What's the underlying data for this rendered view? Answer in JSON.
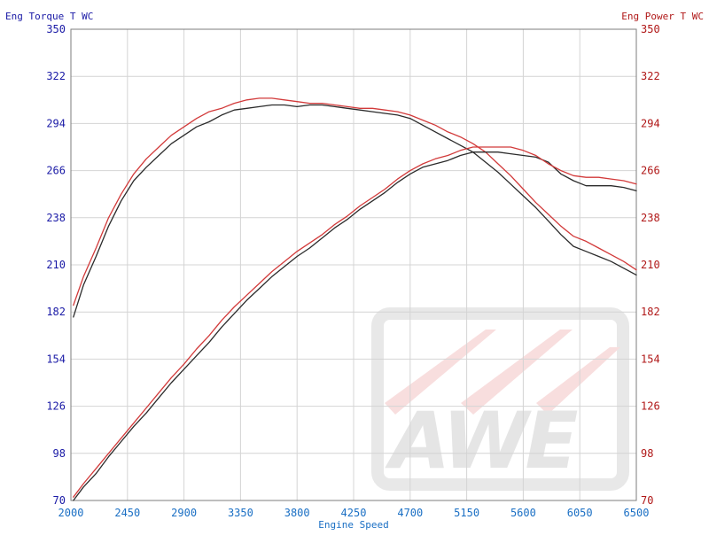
{
  "chart_data": {
    "type": "line",
    "xlabel": "Engine Speed",
    "ylabel_left": "Eng Torque T WC",
    "ylabel_right": "Eng Power T WC",
    "xlim": [
      2000,
      6500
    ],
    "ylim": [
      70,
      350
    ],
    "x_ticks": [
      "2000",
      "2450",
      "2900",
      "3350",
      "3800",
      "4250",
      "4700",
      "5150",
      "5600",
      "6050",
      "6500"
    ],
    "y_ticks": [
      "70",
      "98",
      "126",
      "154",
      "182",
      "210",
      "238",
      "266",
      "294",
      "322",
      "350"
    ],
    "grid": true,
    "watermark": "AWE",
    "colors": {
      "dark_curves": "#2b2b2b",
      "red_curves": "#d23a3a",
      "left_axis": "#1a1aa6",
      "right_axis": "#b01818",
      "x_axis": "#1a6fc4"
    },
    "series": [
      {
        "color": "#2b2b2b",
        "x": [
          2020,
          2100,
          2200,
          2300,
          2400,
          2500,
          2600,
          2700,
          2800,
          2900,
          3000,
          3100,
          3200,
          3300,
          3400,
          3500,
          3600,
          3700,
          3800,
          3900,
          4000,
          4100,
          4200,
          4300,
          4400,
          4500,
          4600,
          4700,
          4800,
          4900,
          5000,
          5100,
          5200,
          5300,
          5400,
          5500,
          5600,
          5700,
          5800,
          5900,
          6000,
          6100,
          6200,
          6300,
          6400,
          6500
        ],
        "y": [
          179,
          198,
          215,
          233,
          248,
          260,
          268,
          275,
          282,
          287,
          292,
          295,
          299,
          302,
          303,
          304,
          305,
          305,
          304,
          305,
          305,
          304,
          303,
          302,
          301,
          300,
          299,
          297,
          293,
          289,
          285,
          281,
          277,
          271,
          265,
          258,
          251,
          244,
          236,
          228,
          221,
          218,
          215,
          212,
          208,
          204
        ]
      },
      {
        "color": "#d23a3a",
        "x": [
          2020,
          2100,
          2200,
          2300,
          2400,
          2500,
          2600,
          2700,
          2800,
          2900,
          3000,
          3100,
          3200,
          3300,
          3400,
          3500,
          3600,
          3700,
          3800,
          3900,
          4000,
          4100,
          4200,
          4300,
          4400,
          4500,
          4600,
          4700,
          4800,
          4900,
          5000,
          5100,
          5200,
          5300,
          5400,
          5500,
          5600,
          5700,
          5800,
          5900,
          6000,
          6100,
          6200,
          6300,
          6400,
          6500
        ],
        "y": [
          186,
          203,
          220,
          238,
          252,
          264,
          273,
          280,
          287,
          292,
          297,
          301,
          303,
          306,
          308,
          309,
          309,
          308,
          307,
          306,
          306,
          305,
          304,
          303,
          303,
          302,
          301,
          299,
          296,
          293,
          289,
          286,
          282,
          277,
          270,
          263,
          255,
          247,
          240,
          233,
          227,
          224,
          220,
          216,
          212,
          207
        ]
      },
      {
        "color": "#2b2b2b",
        "x": [
          2020,
          2100,
          2200,
          2300,
          2400,
          2500,
          2600,
          2700,
          2800,
          2900,
          3000,
          3100,
          3200,
          3300,
          3400,
          3500,
          3600,
          3700,
          3800,
          3900,
          4000,
          4100,
          4200,
          4300,
          4400,
          4500,
          4600,
          4700,
          4800,
          4900,
          5000,
          5100,
          5200,
          5300,
          5400,
          5500,
          5600,
          5700,
          5800,
          5900,
          6000,
          6100,
          6200,
          6300,
          6400,
          6500
        ],
        "y": [
          70,
          78,
          86,
          96,
          105,
          114,
          122,
          131,
          140,
          148,
          156,
          164,
          173,
          181,
          189,
          196,
          203,
          209,
          215,
          220,
          226,
          232,
          237,
          243,
          248,
          253,
          259,
          264,
          268,
          270,
          272,
          275,
          277,
          277,
          277,
          276,
          275,
          274,
          271,
          264,
          260,
          257,
          257,
          257,
          256,
          254
        ]
      },
      {
        "color": "#d23a3a",
        "x": [
          2020,
          2100,
          2200,
          2300,
          2400,
          2500,
          2600,
          2700,
          2800,
          2900,
          3000,
          3100,
          3200,
          3300,
          3400,
          3500,
          3600,
          3700,
          3800,
          3900,
          4000,
          4100,
          4200,
          4300,
          4400,
          4500,
          4600,
          4700,
          4800,
          4900,
          5000,
          5100,
          5200,
          5300,
          5400,
          5500,
          5600,
          5700,
          5800,
          5900,
          6000,
          6100,
          6200,
          6300,
          6400,
          6500
        ],
        "y": [
          72,
          80,
          89,
          98,
          107,
          116,
          125,
          134,
          143,
          151,
          160,
          168,
          177,
          185,
          192,
          199,
          206,
          212,
          218,
          223,
          228,
          234,
          239,
          245,
          250,
          255,
          261,
          266,
          270,
          273,
          275,
          278,
          280,
          280,
          280,
          280,
          278,
          275,
          270,
          266,
          263,
          262,
          262,
          261,
          260,
          258
        ]
      }
    ]
  }
}
